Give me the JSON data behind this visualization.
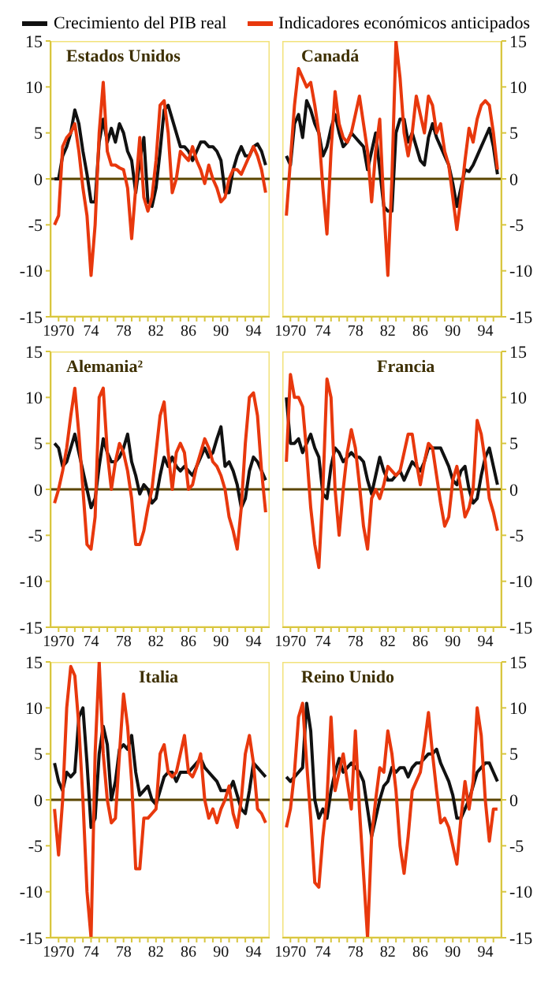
{
  "chart_data": [
    {
      "type": "line",
      "title": "Estados Unidos",
      "legend": "top",
      "xlim": [
        1969,
        1996
      ],
      "ylim": [
        -15,
        15
      ],
      "yticks": [
        -15,
        -10,
        -5,
        0,
        5,
        10,
        15
      ],
      "xticks": [
        {
          "value": 1970,
          "label": "1970"
        },
        {
          "value": 1971,
          "label": null
        },
        {
          "value": 1972,
          "label": null
        },
        {
          "value": 1973,
          "label": null
        },
        {
          "value": 1974,
          "label": "74"
        },
        {
          "value": 1975,
          "label": null
        },
        {
          "value": 1976,
          "label": null
        },
        {
          "value": 1977,
          "label": null
        },
        {
          "value": 1978,
          "label": "78"
        },
        {
          "value": 1979,
          "label": null
        },
        {
          "value": 1980,
          "label": null
        },
        {
          "value": 1981,
          "label": null
        },
        {
          "value": 1982,
          "label": "82"
        },
        {
          "value": 1983,
          "label": null
        },
        {
          "value": 1984,
          "label": null
        },
        {
          "value": 1985,
          "label": null
        },
        {
          "value": 1986,
          "label": "86"
        },
        {
          "value": 1987,
          "label": null
        },
        {
          "value": 1988,
          "label": null
        },
        {
          "value": 1989,
          "label": null
        },
        {
          "value": 1990,
          "label": "90"
        },
        {
          "value": 1991,
          "label": null
        },
        {
          "value": 1992,
          "label": null
        },
        {
          "value": 1993,
          "label": null
        },
        {
          "value": 1994,
          "label": "94"
        },
        {
          "value": 1995,
          "label": null
        }
      ],
      "ref_lines": [
        {
          "axis": "y",
          "value": 0,
          "color": "#5a4500"
        }
      ],
      "x": [
        1969.5,
        1970,
        1970.5,
        1971,
        1971.5,
        1972,
        1972.5,
        1973,
        1973.5,
        1974,
        1974.5,
        1975,
        1975.5,
        1976,
        1976.5,
        1977,
        1977.5,
        1978,
        1978.5,
        1979,
        1979.5,
        1980,
        1980.5,
        1981,
        1981.5,
        1982,
        1982.5,
        1983,
        1983.5,
        1984,
        1984.5,
        1985,
        1985.5,
        1986,
        1986.5,
        1987,
        1987.5,
        1988,
        1988.5,
        1989,
        1989.5,
        1990,
        1990.5,
        1991,
        1991.5,
        1992,
        1992.5,
        1993,
        1993.5,
        1994,
        1994.5,
        1995,
        1995.5
      ],
      "series": [
        {
          "name": "Crecimiento del PIB real",
          "color": "#111111",
          "values": [
            0,
            0,
            2.5,
            3.5,
            5,
            7.5,
            6,
            3,
            0.5,
            -2.5,
            -2.5,
            4,
            6.5,
            4,
            5.5,
            4,
            6,
            5,
            3,
            2,
            -1.5,
            2,
            4.5,
            -2.5,
            -3,
            -1,
            3,
            7.5,
            8,
            6.5,
            5,
            3.5,
            3.5,
            3,
            2,
            3,
            4,
            4,
            3.5,
            3.5,
            3,
            2,
            -1.5,
            -1.5,
            1,
            2.5,
            3.5,
            2.5,
            2.5,
            3.5,
            3.8,
            3,
            1.5
          ]
        },
        {
          "name": "Indicadores económicos anticipados",
          "color": "#e8380d",
          "values": [
            -5,
            -4,
            3.5,
            4.5,
            5,
            6,
            3,
            -1,
            -4,
            -10.5,
            -5,
            5,
            10.5,
            3,
            1.5,
            1.5,
            1.2,
            1,
            -1,
            -6.5,
            -1,
            4.5,
            -2,
            -3.5,
            -2,
            2,
            8,
            8.5,
            5,
            -1.5,
            0,
            3,
            2.5,
            2,
            3.5,
            2,
            1,
            -0.5,
            1.5,
            0,
            -1,
            -2.5,
            -2,
            0,
            1,
            1,
            0.5,
            1.5,
            2.5,
            3.5,
            2.5,
            1,
            -1.5
          ]
        }
      ]
    },
    {
      "type": "line",
      "title": "Canadá",
      "xlim": [
        1969,
        1996
      ],
      "ylim": [
        -15,
        15
      ],
      "yticks": [
        -15,
        -10,
        -5,
        0,
        5,
        10,
        15
      ],
      "xticks": [
        {
          "value": 1970,
          "label": "1970"
        },
        {
          "value": 1971,
          "label": null
        },
        {
          "value": 1972,
          "label": null
        },
        {
          "value": 1973,
          "label": null
        },
        {
          "value": 1974,
          "label": "74"
        },
        {
          "value": 1975,
          "label": null
        },
        {
          "value": 1976,
          "label": null
        },
        {
          "value": 1977,
          "label": null
        },
        {
          "value": 1978,
          "label": "78"
        },
        {
          "value": 1979,
          "label": null
        },
        {
          "value": 1980,
          "label": null
        },
        {
          "value": 1981,
          "label": null
        },
        {
          "value": 1982,
          "label": "82"
        },
        {
          "value": 1983,
          "label": null
        },
        {
          "value": 1984,
          "label": null
        },
        {
          "value": 1985,
          "label": null
        },
        {
          "value": 1986,
          "label": "86"
        },
        {
          "value": 1987,
          "label": null
        },
        {
          "value": 1988,
          "label": null
        },
        {
          "value": 1989,
          "label": null
        },
        {
          "value": 1990,
          "label": "90"
        },
        {
          "value": 1991,
          "label": null
        },
        {
          "value": 1992,
          "label": null
        },
        {
          "value": 1993,
          "label": null
        },
        {
          "value": 1994,
          "label": "94"
        },
        {
          "value": 1995,
          "label": null
        }
      ],
      "ref_lines": [
        {
          "axis": "y",
          "value": 0,
          "color": "#5a4500"
        }
      ],
      "x": [
        1969.5,
        1970,
        1970.5,
        1971,
        1971.5,
        1972,
        1972.5,
        1973,
        1973.5,
        1974,
        1974.5,
        1975,
        1975.5,
        1976,
        1976.5,
        1977,
        1977.5,
        1978,
        1978.5,
        1979,
        1979.5,
        1980,
        1980.5,
        1981,
        1981.5,
        1982,
        1982.5,
        1983,
        1983.5,
        1984,
        1984.5,
        1985,
        1985.5,
        1986,
        1986.5,
        1987,
        1987.5,
        1988,
        1988.5,
        1989,
        1989.5,
        1990,
        1990.5,
        1991,
        1991.5,
        1992,
        1992.5,
        1993,
        1993.5,
        1994,
        1994.5,
        1995,
        1995.5
      ],
      "series": [
        {
          "color": "#111111",
          "values": [
            2.5,
            1.5,
            6,
            7,
            4.5,
            8.5,
            7.5,
            6,
            5,
            2.5,
            3.5,
            5.5,
            7,
            5,
            3.5,
            4,
            5,
            4.5,
            4,
            3.5,
            1,
            3,
            5,
            1,
            -3,
            -3.5,
            -3.5,
            5,
            6.5,
            6.5,
            4,
            5,
            3.5,
            2,
            1.5,
            4.5,
            6,
            4.5,
            3.5,
            2.5,
            1.5,
            -0.5,
            -3,
            -1,
            1,
            0.8,
            1.5,
            2.5,
            3.5,
            4.5,
            5.5,
            3.5,
            0.5
          ]
        },
        {
          "color": "#e8380d",
          "values": [
            -4,
            2,
            8,
            12,
            11,
            10,
            10.5,
            8,
            5,
            -1,
            -6,
            3,
            9.5,
            6,
            4.5,
            4,
            5,
            7,
            9,
            6,
            3,
            -2.5,
            3,
            6.5,
            -3,
            -10.5,
            0,
            15,
            11,
            5,
            2.5,
            5,
            9,
            7,
            5,
            9,
            8,
            5,
            6,
            3,
            1.5,
            -2,
            -5.5,
            -2,
            2,
            5.5,
            4,
            6.5,
            8,
            8.5,
            8,
            5,
            1
          ]
        }
      ]
    },
    {
      "type": "line",
      "title": "Alemania²",
      "xlim": [
        1969,
        1996
      ],
      "ylim": [
        -15,
        15
      ],
      "yticks": [
        -15,
        -10,
        -5,
        0,
        5,
        10,
        15
      ],
      "xticks": [
        {
          "value": 1970,
          "label": "1970"
        },
        {
          "value": 1971,
          "label": null
        },
        {
          "value": 1972,
          "label": null
        },
        {
          "value": 1973,
          "label": null
        },
        {
          "value": 1974,
          "label": "74"
        },
        {
          "value": 1975,
          "label": null
        },
        {
          "value": 1976,
          "label": null
        },
        {
          "value": 1977,
          "label": null
        },
        {
          "value": 1978,
          "label": "78"
        },
        {
          "value": 1979,
          "label": null
        },
        {
          "value": 1980,
          "label": null
        },
        {
          "value": 1981,
          "label": null
        },
        {
          "value": 1982,
          "label": "82"
        },
        {
          "value": 1983,
          "label": null
        },
        {
          "value": 1984,
          "label": null
        },
        {
          "value": 1985,
          "label": null
        },
        {
          "value": 1986,
          "label": "86"
        },
        {
          "value": 1987,
          "label": null
        },
        {
          "value": 1988,
          "label": null
        },
        {
          "value": 1989,
          "label": null
        },
        {
          "value": 1990,
          "label": "90"
        },
        {
          "value": 1991,
          "label": null
        },
        {
          "value": 1992,
          "label": null
        },
        {
          "value": 1993,
          "label": null
        },
        {
          "value": 1994,
          "label": "94"
        },
        {
          "value": 1995,
          "label": null
        }
      ],
      "ref_lines": [
        {
          "axis": "y",
          "value": 0,
          "color": "#5a4500"
        }
      ],
      "x": [
        1969.5,
        1970,
        1970.5,
        1971,
        1971.5,
        1972,
        1972.5,
        1973,
        1973.5,
        1974,
        1974.5,
        1975,
        1975.5,
        1976,
        1976.5,
        1977,
        1977.5,
        1978,
        1978.5,
        1979,
        1979.5,
        1980,
        1980.5,
        1981,
        1981.5,
        1982,
        1982.5,
        1983,
        1983.5,
        1984,
        1984.5,
        1985,
        1985.5,
        1986,
        1986.5,
        1987,
        1987.5,
        1988,
        1988.5,
        1989,
        1989.5,
        1990,
        1990.5,
        1991,
        1991.5,
        1992,
        1992.5,
        1993,
        1993.5,
        1994,
        1994.5,
        1995,
        1995.5
      ],
      "series": [
        {
          "color": "#111111",
          "values": [
            5,
            4.5,
            2.5,
            3,
            4.5,
            6,
            4,
            2,
            0,
            -2,
            -1,
            2.5,
            5.5,
            4,
            3,
            3,
            3.5,
            4.5,
            6,
            3,
            1.5,
            -0.5,
            0.5,
            0,
            -1.5,
            -1,
            1.5,
            3.5,
            2.5,
            3.5,
            2.5,
            2,
            2.5,
            2,
            1.5,
            2.5,
            3.5,
            4.5,
            3.5,
            4,
            5.5,
            6.8,
            2.5,
            3,
            2,
            0.5,
            -2,
            -1,
            2,
            3.5,
            3,
            2,
            1
          ]
        },
        {
          "color": "#e8380d",
          "values": [
            -1.5,
            0,
            2,
            4.5,
            8,
            11,
            6,
            0,
            -6,
            -6.5,
            -3,
            10,
            11,
            4,
            0,
            3,
            5,
            4,
            2,
            -1,
            -6,
            -6,
            -4.5,
            -2,
            0,
            4,
            8,
            9.5,
            4,
            0,
            4,
            5,
            4,
            0,
            0.5,
            2.5,
            4,
            5.5,
            4.5,
            3,
            2.5,
            1.5,
            0,
            -3,
            -4.5,
            -6.5,
            -2,
            5,
            10,
            10.5,
            8,
            2,
            -2.5
          ]
        }
      ]
    },
    {
      "type": "line",
      "title": "Francia",
      "xlim": [
        1969,
        1996
      ],
      "ylim": [
        -15,
        15
      ],
      "yticks": [
        -15,
        -10,
        -5,
        0,
        5,
        10,
        15
      ],
      "xticks": [
        {
          "value": 1970,
          "label": "1970"
        },
        {
          "value": 1971,
          "label": null
        },
        {
          "value": 1972,
          "label": null
        },
        {
          "value": 1973,
          "label": null
        },
        {
          "value": 1974,
          "label": "74"
        },
        {
          "value": 1975,
          "label": null
        },
        {
          "value": 1976,
          "label": null
        },
        {
          "value": 1977,
          "label": null
        },
        {
          "value": 1978,
          "label": "78"
        },
        {
          "value": 1979,
          "label": null
        },
        {
          "value": 1980,
          "label": null
        },
        {
          "value": 1981,
          "label": null
        },
        {
          "value": 1982,
          "label": "82"
        },
        {
          "value": 1983,
          "label": null
        },
        {
          "value": 1984,
          "label": null
        },
        {
          "value": 1985,
          "label": null
        },
        {
          "value": 1986,
          "label": "86"
        },
        {
          "value": 1987,
          "label": null
        },
        {
          "value": 1988,
          "label": null
        },
        {
          "value": 1989,
          "label": null
        },
        {
          "value": 1990,
          "label": "90"
        },
        {
          "value": 1991,
          "label": null
        },
        {
          "value": 1992,
          "label": null
        },
        {
          "value": 1993,
          "label": null
        },
        {
          "value": 1994,
          "label": "94"
        },
        {
          "value": 1995,
          "label": null
        }
      ],
      "ref_lines": [
        {
          "axis": "y",
          "value": 0,
          "color": "#5a4500"
        }
      ],
      "x": [
        1969.5,
        1970,
        1970.5,
        1971,
        1971.5,
        1972,
        1972.5,
        1973,
        1973.5,
        1974,
        1974.5,
        1975,
        1975.5,
        1976,
        1976.5,
        1977,
        1977.5,
        1978,
        1978.5,
        1979,
        1979.5,
        1980,
        1980.5,
        1981,
        1981.5,
        1982,
        1982.5,
        1983,
        1983.5,
        1984,
        1984.5,
        1985,
        1985.5,
        1986,
        1986.5,
        1987,
        1987.5,
        1988,
        1988.5,
        1989,
        1989.5,
        1990,
        1990.5,
        1991,
        1991.5,
        1992,
        1992.5,
        1993,
        1993.5,
        1994,
        1994.5,
        1995,
        1995.5
      ],
      "series": [
        {
          "color": "#111111",
          "values": [
            10,
            5,
            5,
            5.5,
            4,
            5,
            6,
            4.5,
            3.5,
            -0.5,
            -1,
            2.5,
            4.5,
            4,
            3,
            3.5,
            4,
            3.5,
            3.5,
            3,
            1,
            -0.5,
            1.5,
            3.5,
            2,
            1,
            1,
            1.5,
            2,
            1,
            2,
            3,
            2.5,
            2,
            3,
            4.5,
            4.5,
            4.5,
            4.5,
            3.5,
            2.5,
            1,
            0.5,
            2,
            2.5,
            0,
            -1.5,
            -1,
            1.5,
            3.5,
            4.5,
            2.5,
            0.5
          ]
        },
        {
          "color": "#e8380d",
          "values": [
            3,
            12.5,
            10,
            10,
            9,
            4,
            -2,
            -6,
            -8.5,
            0,
            12,
            10,
            0,
            -5,
            0,
            4,
            6.5,
            4.5,
            0.5,
            -4,
            -6.5,
            -1,
            0,
            -1,
            0.5,
            2.5,
            2,
            1.5,
            2,
            4,
            6,
            6,
            3,
            0.5,
            3,
            5,
            4.5,
            1.5,
            -1.5,
            -4,
            -3,
            1,
            2.5,
            0,
            -3,
            -2,
            0,
            7.5,
            6,
            3,
            -1,
            -2.5,
            -4.5
          ]
        }
      ]
    },
    {
      "type": "line",
      "title": "Italia",
      "xlim": [
        1969,
        1996
      ],
      "ylim": [
        -15,
        15
      ],
      "yticks": [
        -15,
        -10,
        -5,
        0,
        5,
        10,
        15
      ],
      "xticks": [
        {
          "value": 1970,
          "label": "1970"
        },
        {
          "value": 1971,
          "label": null
        },
        {
          "value": 1972,
          "label": null
        },
        {
          "value": 1973,
          "label": null
        },
        {
          "value": 1974,
          "label": "74"
        },
        {
          "value": 1975,
          "label": null
        },
        {
          "value": 1976,
          "label": null
        },
        {
          "value": 1977,
          "label": null
        },
        {
          "value": 1978,
          "label": "78"
        },
        {
          "value": 1979,
          "label": null
        },
        {
          "value": 1980,
          "label": null
        },
        {
          "value": 1981,
          "label": null
        },
        {
          "value": 1982,
          "label": "82"
        },
        {
          "value": 1983,
          "label": null
        },
        {
          "value": 1984,
          "label": null
        },
        {
          "value": 1985,
          "label": null
        },
        {
          "value": 1986,
          "label": "86"
        },
        {
          "value": 1987,
          "label": null
        },
        {
          "value": 1988,
          "label": null
        },
        {
          "value": 1989,
          "label": null
        },
        {
          "value": 1990,
          "label": "90"
        },
        {
          "value": 1991,
          "label": null
        },
        {
          "value": 1992,
          "label": null
        },
        {
          "value": 1993,
          "label": null
        },
        {
          "value": 1994,
          "label": "94"
        },
        {
          "value": 1995,
          "label": null
        }
      ],
      "ref_lines": [
        {
          "axis": "y",
          "value": 0,
          "color": "#5a4500"
        }
      ],
      "x": [
        1969.5,
        1970,
        1970.5,
        1971,
        1971.5,
        1972,
        1972.5,
        1973,
        1973.5,
        1974,
        1974.5,
        1975,
        1975.5,
        1976,
        1976.5,
        1977,
        1977.5,
        1978,
        1978.5,
        1979,
        1979.5,
        1980,
        1980.5,
        1981,
        1981.5,
        1982,
        1982.5,
        1983,
        1983.5,
        1984,
        1984.5,
        1985,
        1985.5,
        1986,
        1986.5,
        1987,
        1987.5,
        1988,
        1988.5,
        1989,
        1989.5,
        1990,
        1990.5,
        1991,
        1991.5,
        1992,
        1992.5,
        1993,
        1993.5,
        1994,
        1994.5,
        1995,
        1995.5
      ],
      "series": [
        {
          "color": "#111111",
          "values": [
            4,
            2,
            1,
            3,
            2.5,
            3,
            9,
            10,
            4,
            -3,
            -2,
            5,
            8,
            6,
            0,
            2,
            5.5,
            6,
            5.5,
            7,
            3,
            0.5,
            1,
            1.5,
            0,
            -0.5,
            1,
            2.5,
            3,
            3,
            2,
            3,
            3,
            3,
            3.5,
            4,
            4.5,
            3.5,
            3,
            2.5,
            2,
            1,
            1,
            1,
            2,
            0.5,
            -1,
            -1.5,
            1,
            4,
            3.5,
            3,
            2.5
          ]
        },
        {
          "color": "#e8380d",
          "values": [
            -1,
            -6,
            0,
            10,
            14.5,
            13.5,
            8,
            0,
            -10,
            -15,
            5,
            15,
            5,
            0,
            -2.5,
            -2,
            5,
            11.5,
            8,
            2,
            -7.5,
            -7.5,
            -2,
            -2,
            -1.5,
            -1,
            5,
            6,
            3,
            2.5,
            3,
            5,
            7,
            3,
            2.5,
            3.5,
            5,
            0,
            -2,
            -1,
            -2.5,
            -1,
            0,
            1.5,
            -1.5,
            -3,
            0,
            5,
            7,
            4,
            -1,
            -1.5,
            -2.5
          ]
        }
      ]
    },
    {
      "type": "line",
      "title": "Reino Unido",
      "xlim": [
        1969,
        1996
      ],
      "ylim": [
        -15,
        15
      ],
      "yticks": [
        -15,
        -10,
        -5,
        0,
        5,
        10,
        15
      ],
      "xticks": [
        {
          "value": 1970,
          "label": "1970"
        },
        {
          "value": 1971,
          "label": null
        },
        {
          "value": 1972,
          "label": null
        },
        {
          "value": 1973,
          "label": null
        },
        {
          "value": 1974,
          "label": "74"
        },
        {
          "value": 1975,
          "label": null
        },
        {
          "value": 1976,
          "label": null
        },
        {
          "value": 1977,
          "label": null
        },
        {
          "value": 1978,
          "label": "78"
        },
        {
          "value": 1979,
          "label": null
        },
        {
          "value": 1980,
          "label": null
        },
        {
          "value": 1981,
          "label": null
        },
        {
          "value": 1982,
          "label": "82"
        },
        {
          "value": 1983,
          "label": null
        },
        {
          "value": 1984,
          "label": null
        },
        {
          "value": 1985,
          "label": null
        },
        {
          "value": 1986,
          "label": "86"
        },
        {
          "value": 1987,
          "label": null
        },
        {
          "value": 1988,
          "label": null
        },
        {
          "value": 1989,
          "label": null
        },
        {
          "value": 1990,
          "label": "90"
        },
        {
          "value": 1991,
          "label": null
        },
        {
          "value": 1992,
          "label": null
        },
        {
          "value": 1993,
          "label": null
        },
        {
          "value": 1994,
          "label": "94"
        },
        {
          "value": 1995,
          "label": null
        }
      ],
      "ref_lines": [
        {
          "axis": "y",
          "value": 0,
          "color": "#5a4500"
        }
      ],
      "x": [
        1969.5,
        1970,
        1970.5,
        1971,
        1971.5,
        1972,
        1972.5,
        1973,
        1973.5,
        1974,
        1974.5,
        1975,
        1975.5,
        1976,
        1976.5,
        1977,
        1977.5,
        1978,
        1978.5,
        1979,
        1979.5,
        1980,
        1980.5,
        1981,
        1981.5,
        1982,
        1982.5,
        1983,
        1983.5,
        1984,
        1984.5,
        1985,
        1985.5,
        1986,
        1986.5,
        1987,
        1987.5,
        1988,
        1988.5,
        1989,
        1989.5,
        1990,
        1990.5,
        1991,
        1991.5,
        1992,
        1992.5,
        1993,
        1993.5,
        1994,
        1994.5,
        1995,
        1995.5
      ],
      "series": [
        {
          "color": "#111111",
          "values": [
            2.5,
            2,
            2.5,
            3,
            3.5,
            10.5,
            7.5,
            0,
            -2,
            -1,
            -2,
            1,
            3,
            4.5,
            3,
            3.5,
            4,
            3.5,
            3,
            2,
            -1,
            -4,
            -2,
            0,
            1.5,
            2,
            3.5,
            3,
            3.5,
            3.5,
            2.5,
            3.5,
            4,
            4,
            4.5,
            5,
            5,
            5.5,
            4,
            3,
            2,
            0.5,
            -2,
            -2,
            -1,
            0,
            1.5,
            3,
            3.5,
            4,
            4,
            3,
            2
          ]
        },
        {
          "color": "#e8380d",
          "values": [
            -3,
            -1,
            3,
            9,
            10.5,
            4,
            -2,
            -9,
            -9.5,
            -4,
            0,
            9,
            1,
            3,
            5,
            2,
            -1,
            7.5,
            -1,
            -8,
            -15,
            -4,
            0,
            3.5,
            3,
            7.5,
            5,
            1,
            -5,
            -8,
            -4,
            1,
            2,
            3,
            6,
            9.5,
            5,
            1,
            -2.5,
            -2,
            -3,
            -5,
            -7,
            -2,
            2,
            -1,
            2,
            10,
            7,
            0,
            -4.5,
            -1,
            -1
          ]
        }
      ]
    }
  ]
}
